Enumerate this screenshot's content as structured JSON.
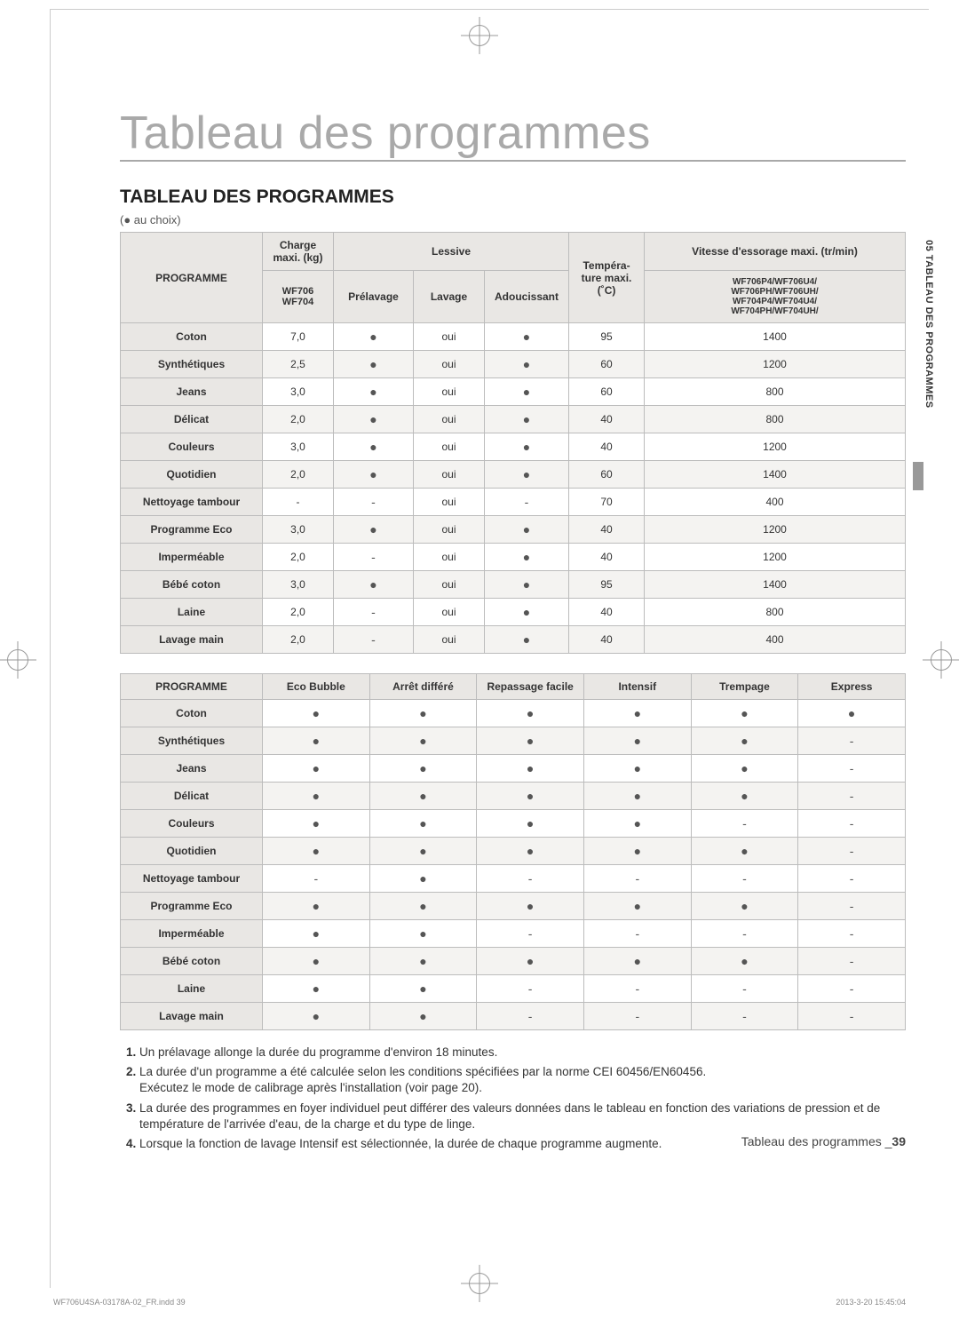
{
  "titles": {
    "main": "Tableau des programmes",
    "sub": "TABLEAU DES PROGRAMMES",
    "legend": "(● au choix)",
    "sideTab": "05 TABLEAU DES PROGRAMMES"
  },
  "table1": {
    "headers": {
      "programme": "PROGRAMME",
      "charge": "Charge maxi. (kg)",
      "chargeSub": "WF706\nWF704",
      "lessive": "Lessive",
      "prelavage": "Prélavage",
      "lavage": "Lavage",
      "adoucissant": "Adoucissant",
      "temp": "Tempéra-\nture maxi.\n(˚C)",
      "vitesse": "Vitesse d'essorage maxi. (tr/min)",
      "vitesseSub": "WF706P4/WF706U4/\nWF706PH/WF706UH/\nWF704P4/WF704U4/\nWF704PH/WF704UH/"
    },
    "rows": [
      {
        "name": "Coton",
        "charge": "7,0",
        "pre": "●",
        "lav": "oui",
        "ado": "●",
        "temp": "95",
        "vit": "1400"
      },
      {
        "name": "Synthétiques",
        "charge": "2,5",
        "pre": "●",
        "lav": "oui",
        "ado": "●",
        "temp": "60",
        "vit": "1200"
      },
      {
        "name": "Jeans",
        "charge": "3,0",
        "pre": "●",
        "lav": "oui",
        "ado": "●",
        "temp": "60",
        "vit": "800"
      },
      {
        "name": "Délicat",
        "charge": "2,0",
        "pre": "●",
        "lav": "oui",
        "ado": "●",
        "temp": "40",
        "vit": "800"
      },
      {
        "name": "Couleurs",
        "charge": "3,0",
        "pre": "●",
        "lav": "oui",
        "ado": "●",
        "temp": "40",
        "vit": "1200"
      },
      {
        "name": "Quotidien",
        "charge": "2,0",
        "pre": "●",
        "lav": "oui",
        "ado": "●",
        "temp": "60",
        "vit": "1400"
      },
      {
        "name": "Nettoyage tambour",
        "charge": "-",
        "pre": "-",
        "lav": "oui",
        "ado": "-",
        "temp": "70",
        "vit": "400"
      },
      {
        "name": "Programme Eco",
        "charge": "3,0",
        "pre": "●",
        "lav": "oui",
        "ado": "●",
        "temp": "40",
        "vit": "1200"
      },
      {
        "name": "Imperméable",
        "charge": "2,0",
        "pre": "-",
        "lav": "oui",
        "ado": "●",
        "temp": "40",
        "vit": "1200"
      },
      {
        "name": "Bébé coton",
        "charge": "3,0",
        "pre": "●",
        "lav": "oui",
        "ado": "●",
        "temp": "95",
        "vit": "1400"
      },
      {
        "name": "Laine",
        "charge": "2,0",
        "pre": "-",
        "lav": "oui",
        "ado": "●",
        "temp": "40",
        "vit": "800"
      },
      {
        "name": "Lavage main",
        "charge": "2,0",
        "pre": "-",
        "lav": "oui",
        "ado": "●",
        "temp": "40",
        "vit": "400"
      }
    ]
  },
  "table2": {
    "headers": {
      "programme": "PROGRAMME",
      "eco": "Eco Bubble",
      "arret": "Arrêt différé",
      "repassage": "Repassage facile",
      "intensif": "Intensif",
      "trempage": "Trempage",
      "express": "Express"
    },
    "rows": [
      {
        "name": "Coton",
        "c": [
          "●",
          "●",
          "●",
          "●",
          "●",
          "●"
        ]
      },
      {
        "name": "Synthétiques",
        "c": [
          "●",
          "●",
          "●",
          "●",
          "●",
          "-"
        ]
      },
      {
        "name": "Jeans",
        "c": [
          "●",
          "●",
          "●",
          "●",
          "●",
          "-"
        ]
      },
      {
        "name": "Délicat",
        "c": [
          "●",
          "●",
          "●",
          "●",
          "●",
          "-"
        ]
      },
      {
        "name": "Couleurs",
        "c": [
          "●",
          "●",
          "●",
          "●",
          "-",
          "-"
        ]
      },
      {
        "name": "Quotidien",
        "c": [
          "●",
          "●",
          "●",
          "●",
          "●",
          "-"
        ]
      },
      {
        "name": "Nettoyage tambour",
        "c": [
          "-",
          "●",
          "-",
          "-",
          "-",
          "-"
        ]
      },
      {
        "name": "Programme Eco",
        "c": [
          "●",
          "●",
          "●",
          "●",
          "●",
          "-"
        ]
      },
      {
        "name": "Imperméable",
        "c": [
          "●",
          "●",
          "-",
          "-",
          "-",
          "-"
        ]
      },
      {
        "name": "Bébé coton",
        "c": [
          "●",
          "●",
          "●",
          "●",
          "●",
          "-"
        ]
      },
      {
        "name": "Laine",
        "c": [
          "●",
          "●",
          "-",
          "-",
          "-",
          "-"
        ]
      },
      {
        "name": "Lavage main",
        "c": [
          "●",
          "●",
          "-",
          "-",
          "-",
          "-"
        ]
      }
    ]
  },
  "notes": [
    "Un prélavage allonge la durée du programme d'environ 18 minutes.",
    "La durée d'un programme a été calculée selon les conditions spécifiées par la norme CEI 60456/EN60456.\nExécutez le mode de calibrage après l'installation (voir page 20).",
    "La durée des programmes en foyer individuel peut différer des valeurs données dans le tableau en fonction des variations de pression et de température de l'arrivée d'eau, de la charge et du type de linge.",
    "Lorsque la fonction de lavage Intensif est sélectionnée, la durée de chaque programme augmente."
  ],
  "footer": {
    "pageLabel": "Tableau des programmes _",
    "pageNum": "39",
    "indd": "WF706U4SA-03178A-02_FR.indd   39",
    "date": "2013-3-20   15:45:04"
  }
}
